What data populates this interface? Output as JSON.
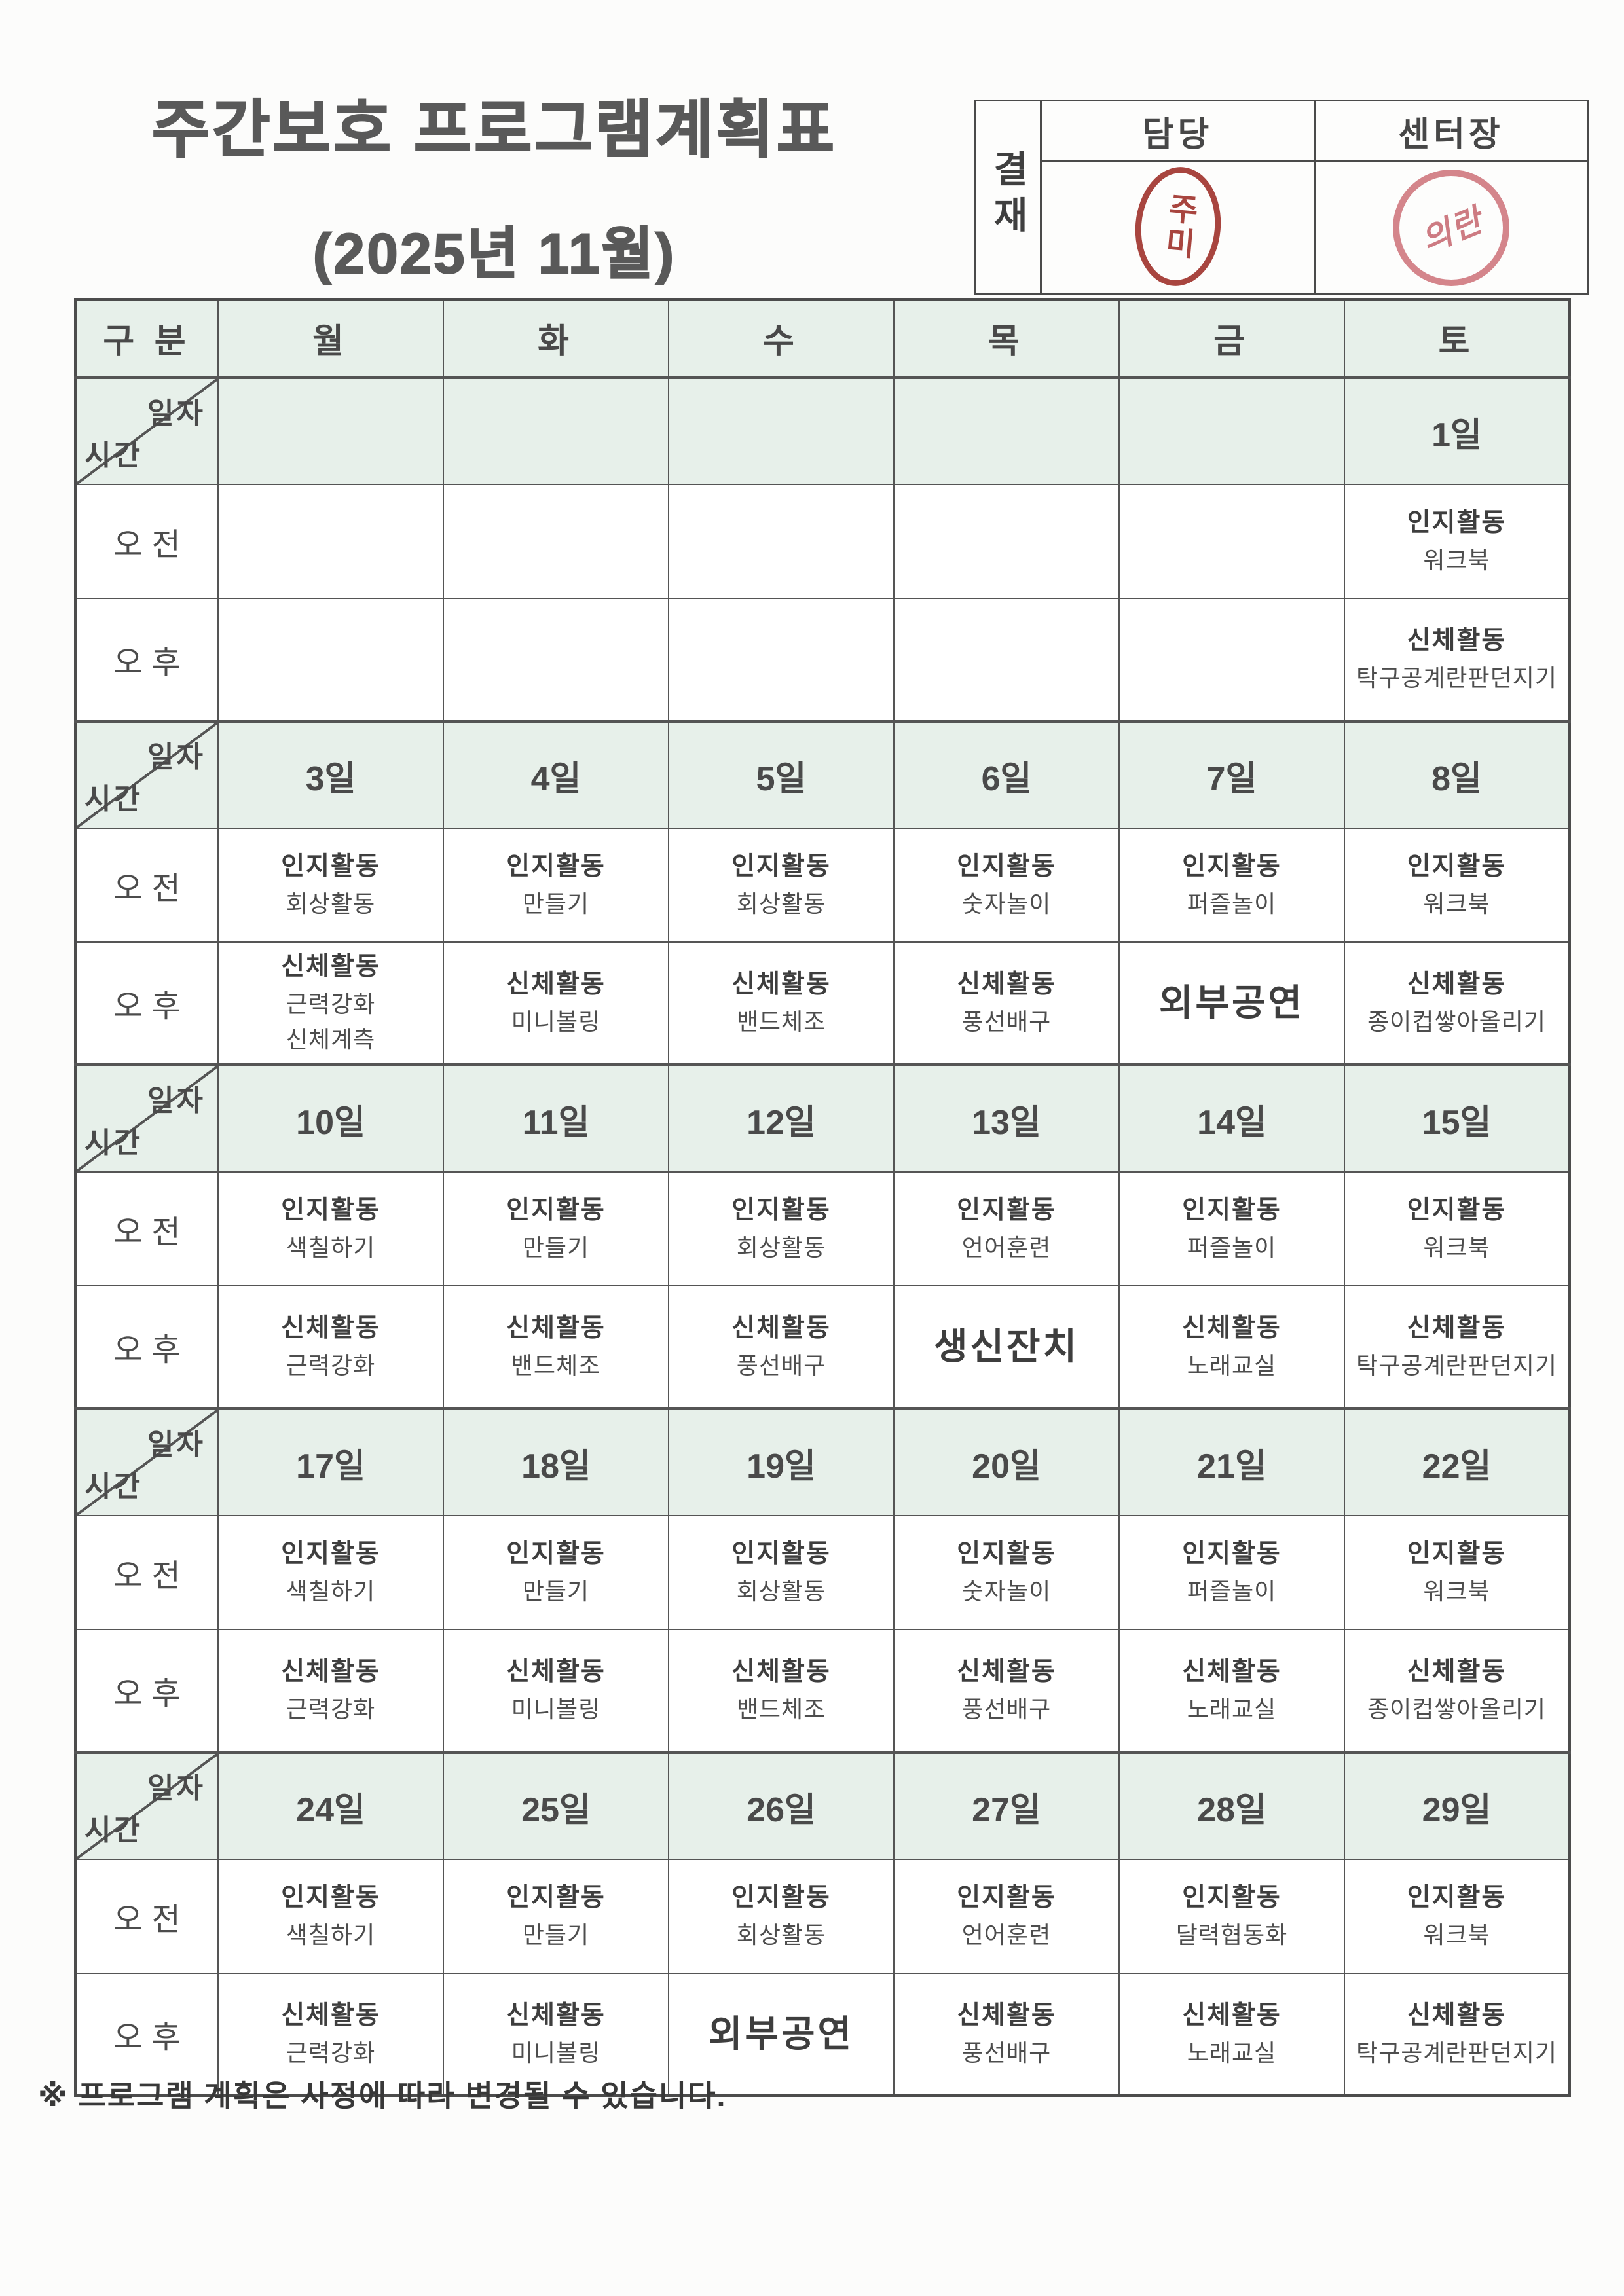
{
  "page": {
    "title_line1": "주간보호 프로그램계획표",
    "title_line2": "(2025년 11월)",
    "footer_note": "※ 프로그램 계획은 사정에 따라 변경될 수 있습니다."
  },
  "approval": {
    "label": "결재",
    "col1": "담당",
    "col2": "센터장",
    "stamp1_text": "주미",
    "stamp2_text": "의란"
  },
  "table": {
    "corner": "구 분",
    "days": [
      "월",
      "화",
      "수",
      "목",
      "금",
      "토"
    ],
    "date_label_top": "일자",
    "date_label_bottom": "시간",
    "am_label": "오전",
    "pm_label": "오후",
    "weeks": [
      {
        "dates": [
          "",
          "",
          "",
          "",
          "",
          "1일"
        ],
        "am": [
          [],
          [],
          [],
          [],
          [],
          [
            "인지활동",
            "워크북"
          ]
        ],
        "pm": [
          [],
          [],
          [],
          [],
          [],
          [
            "신체활동",
            "탁구공계란판던지기"
          ]
        ]
      },
      {
        "dates": [
          "3일",
          "4일",
          "5일",
          "6일",
          "7일",
          "8일"
        ],
        "am": [
          [
            "인지활동",
            "회상활동"
          ],
          [
            "인지활동",
            "만들기"
          ],
          [
            "인지활동",
            "회상활동"
          ],
          [
            "인지활동",
            "숫자놀이"
          ],
          [
            "인지활동",
            "퍼즐놀이"
          ],
          [
            "인지활동",
            "워크북"
          ]
        ],
        "pm": [
          [
            "신체활동",
            "근력강화",
            "신체계측"
          ],
          [
            "신체활동",
            "미니볼링"
          ],
          [
            "신체활동",
            "밴드체조"
          ],
          [
            "신체활동",
            "풍선배구"
          ],
          [
            "외부공연"
          ],
          [
            "신체활동",
            "종이컵쌓아올리기"
          ]
        ]
      },
      {
        "dates": [
          "10일",
          "11일",
          "12일",
          "13일",
          "14일",
          "15일"
        ],
        "am": [
          [
            "인지활동",
            "색칠하기"
          ],
          [
            "인지활동",
            "만들기"
          ],
          [
            "인지활동",
            "회상활동"
          ],
          [
            "인지활동",
            "언어훈련"
          ],
          [
            "인지활동",
            "퍼즐놀이"
          ],
          [
            "인지활동",
            "워크북"
          ]
        ],
        "pm": [
          [
            "신체활동",
            "근력강화"
          ],
          [
            "신체활동",
            "밴드체조"
          ],
          [
            "신체활동",
            "풍선배구"
          ],
          [
            "생신잔치"
          ],
          [
            "신체활동",
            "노래교실"
          ],
          [
            "신체활동",
            "탁구공계란판던지기"
          ]
        ]
      },
      {
        "dates": [
          "17일",
          "18일",
          "19일",
          "20일",
          "21일",
          "22일"
        ],
        "am": [
          [
            "인지활동",
            "색칠하기"
          ],
          [
            "인지활동",
            "만들기"
          ],
          [
            "인지활동",
            "회상활동"
          ],
          [
            "인지활동",
            "숫자놀이"
          ],
          [
            "인지활동",
            "퍼즐놀이"
          ],
          [
            "인지활동",
            "워크북"
          ]
        ],
        "pm": [
          [
            "신체활동",
            "근력강화"
          ],
          [
            "신체활동",
            "미니볼링"
          ],
          [
            "신체활동",
            "밴드체조"
          ],
          [
            "신체활동",
            "풍선배구"
          ],
          [
            "신체활동",
            "노래교실"
          ],
          [
            "신체활동",
            "종이컵쌓아올리기"
          ]
        ]
      },
      {
        "dates": [
          "24일",
          "25일",
          "26일",
          "27일",
          "28일",
          "29일"
        ],
        "am": [
          [
            "인지활동",
            "색칠하기"
          ],
          [
            "인지활동",
            "만들기"
          ],
          [
            "인지활동",
            "회상활동"
          ],
          [
            "인지활동",
            "언어훈련"
          ],
          [
            "인지활동",
            "달력협동화"
          ],
          [
            "인지활동",
            "워크북"
          ]
        ],
        "pm": [
          [
            "신체활동",
            "근력강화"
          ],
          [
            "신체활동",
            "미니볼링"
          ],
          [
            "외부공연"
          ],
          [
            "신체활동",
            "풍선배구"
          ],
          [
            "신체활동",
            "노래교실"
          ],
          [
            "신체활동",
            "탁구공계란판던지기"
          ]
        ]
      }
    ]
  },
  "colors": {
    "row_tint": "#e7f0ea",
    "border": "#555555",
    "title_gray": "#595959",
    "stamp_red": "#a8453f",
    "stamp_pink": "#d4858b"
  }
}
